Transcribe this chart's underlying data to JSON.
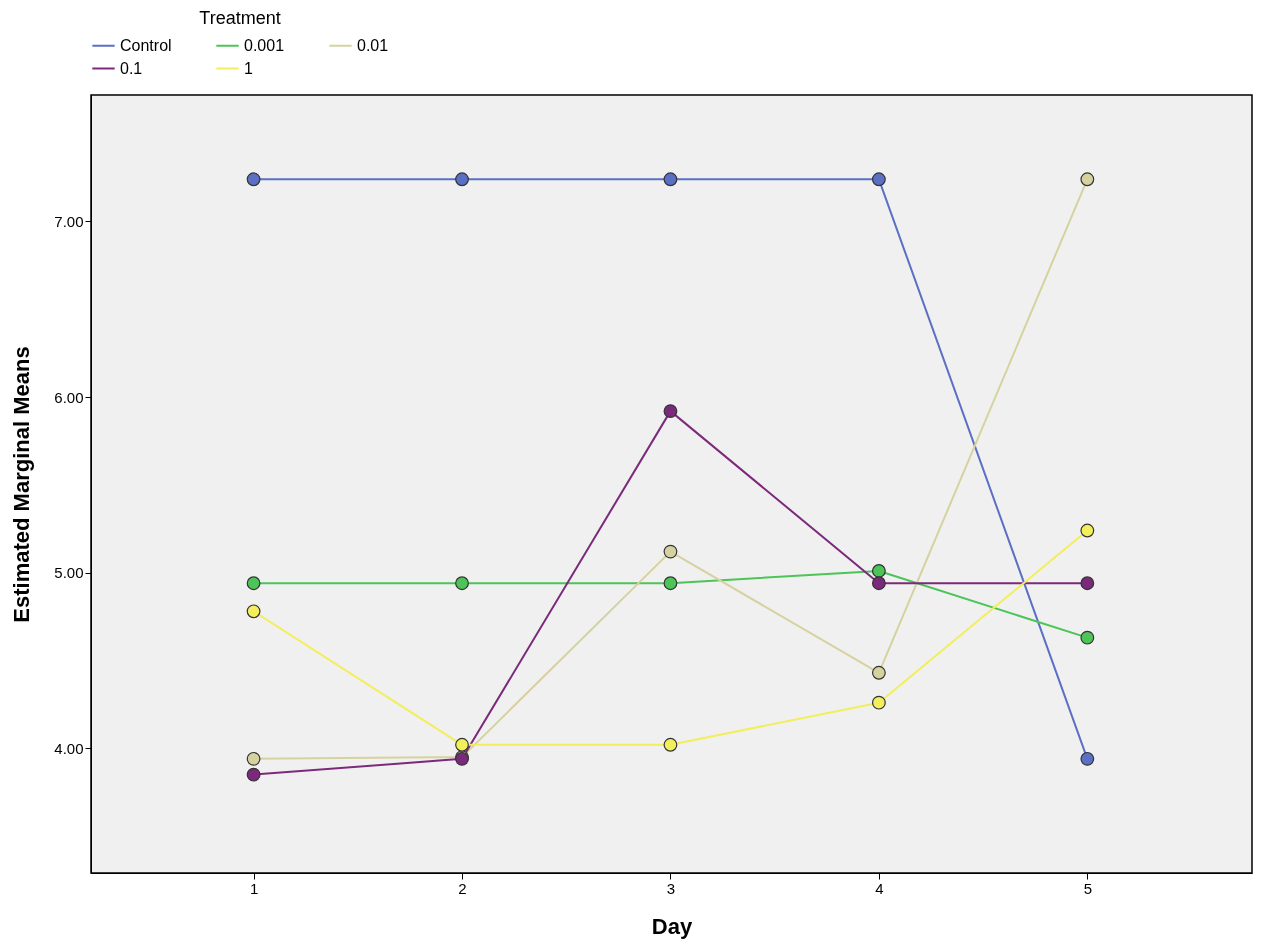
{
  "chart_data": {
    "type": "line",
    "xlabel": "Day",
    "ylabel": "Estimated Marginal Means",
    "legend_title": "Treatment",
    "legend": "top",
    "marker": "circle",
    "grid": false,
    "x": [
      1,
      2,
      3,
      4,
      5
    ],
    "xlim": [
      0.22,
      5.79
    ],
    "xticks": [
      1,
      2,
      3,
      4,
      5
    ],
    "ylim": [
      3.29,
      7.72
    ],
    "yticks": [
      {
        "value": 4,
        "label": "4.00"
      },
      {
        "value": 5,
        "label": "5.00"
      },
      {
        "value": 6,
        "label": "6.00"
      },
      {
        "value": 7,
        "label": "7.00"
      }
    ],
    "series": [
      {
        "name": "Control",
        "color": "#5b6fc4",
        "values": [
          7.24,
          7.24,
          7.24,
          7.24,
          3.94
        ]
      },
      {
        "name": "0.001",
        "color": "#4cc457",
        "values": [
          4.94,
          4.94,
          4.94,
          5.01,
          4.63
        ]
      },
      {
        "name": "0.01",
        "color": "#d6d2a0",
        "values": [
          3.94,
          3.95,
          5.12,
          4.43,
          7.24
        ]
      },
      {
        "name": "0.1",
        "color": "#7b2a7b",
        "values": [
          3.85,
          3.94,
          5.92,
          4.94,
          4.94
        ]
      },
      {
        "name": "1",
        "color": "#f2ee5c",
        "values": [
          4.78,
          4.02,
          4.02,
          4.26,
          5.24
        ]
      }
    ]
  }
}
